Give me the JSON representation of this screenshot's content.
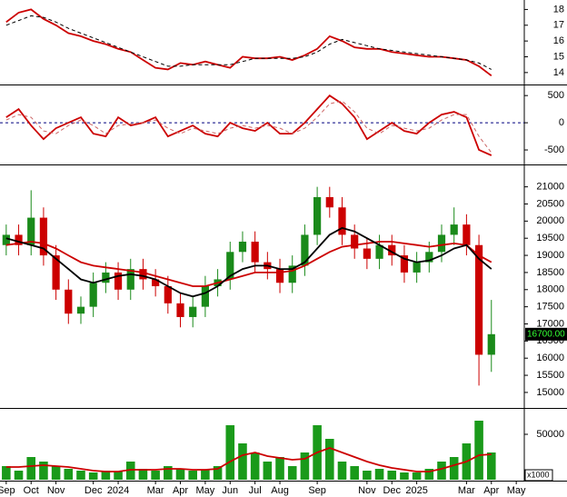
{
  "chart_data": [
    {
      "type": "line",
      "ylim": [
        13.3,
        18.6
      ],
      "yticks": [
        14,
        15,
        16,
        17,
        18
      ],
      "series": [
        {
          "color": "#cc0000",
          "dashed": false,
          "values": [
            17.2,
            17.8,
            18.0,
            17.4,
            17.0,
            16.5,
            16.3,
            16.0,
            15.8,
            15.5,
            15.3,
            14.8,
            14.3,
            14.2,
            14.6,
            14.5,
            14.7,
            14.5,
            14.3,
            15.0,
            14.9,
            14.9,
            15.0,
            14.8,
            15.1,
            15.5,
            16.3,
            16.0,
            15.6,
            15.5,
            15.5,
            15.3,
            15.2,
            15.1,
            15.0,
            15.0,
            14.9,
            14.8,
            14.4,
            13.8,
            null,
            null
          ]
        },
        {
          "color": "#000000",
          "dashed": true,
          "values": [
            17.0,
            17.3,
            17.6,
            17.5,
            17.2,
            16.8,
            16.5,
            16.2,
            15.9,
            15.6,
            15.3,
            15.0,
            14.7,
            14.4,
            14.4,
            14.5,
            14.5,
            14.5,
            14.5,
            14.7,
            14.9,
            14.9,
            14.9,
            14.9,
            15.0,
            15.3,
            15.8,
            16.1,
            15.9,
            15.7,
            15.5,
            15.4,
            15.3,
            15.2,
            15.1,
            15.0,
            14.9,
            14.8,
            14.6,
            14.2,
            null,
            null
          ]
        }
      ]
    },
    {
      "type": "line",
      "ylim": [
        -750,
        670
      ],
      "yticks": [
        -500,
        0,
        500
      ],
      "zero_line": true,
      "series": [
        {
          "color": "#cc0000",
          "dashed": false,
          "values": [
            100,
            250,
            -50,
            -300,
            -100,
            0,
            100,
            -200,
            -250,
            100,
            -50,
            0,
            100,
            -250,
            -150,
            -50,
            -200,
            -250,
            0,
            -100,
            -150,
            0,
            -200,
            -200,
            0,
            250,
            500,
            350,
            100,
            -300,
            -150,
            0,
            -150,
            -200,
            0,
            150,
            200,
            100,
            -500,
            -600,
            null,
            null
          ]
        },
        {
          "color": "#cc6666",
          "dashed": true,
          "values": [
            50,
            150,
            100,
            -150,
            -200,
            -50,
            50,
            -50,
            -200,
            -50,
            -20,
            0,
            50,
            -100,
            -200,
            -100,
            -150,
            -200,
            -100,
            -50,
            -100,
            -50,
            -100,
            -200,
            -100,
            100,
            350,
            400,
            200,
            -100,
            -200,
            -50,
            -100,
            -150,
            -100,
            50,
            150,
            150,
            -250,
            -550,
            null,
            null
          ]
        }
      ]
    },
    {
      "type": "candlestick",
      "ylim": [
        14600,
        21600
      ],
      "yticks": [
        15000,
        15500,
        16000,
        16500,
        17000,
        17500,
        18000,
        18500,
        19000,
        19500,
        20000,
        20500,
        21000
      ],
      "up_color": "#1a8a1a",
      "down_color": "#cc0000",
      "open": [
        19300,
        19600,
        19300,
        20100,
        19000,
        18000,
        17300,
        17500,
        18200,
        18500,
        18000,
        18600,
        18300,
        18100,
        17600,
        17200,
        17500,
        18100,
        18300,
        19100,
        19400,
        18800,
        18600,
        18200,
        18700,
        19600,
        20700,
        20400,
        19600,
        19200,
        18900,
        19300,
        19000,
        18500,
        18800,
        19100,
        19600,
        19900,
        19300,
        16100,
        null,
        null
      ],
      "close": [
        19600,
        19300,
        20100,
        19000,
        18000,
        17300,
        17500,
        18200,
        18500,
        18000,
        18600,
        18300,
        18100,
        17600,
        17200,
        17500,
        18100,
        18300,
        19100,
        19400,
        18800,
        18600,
        18200,
        18700,
        19600,
        20700,
        20400,
        19600,
        19200,
        18900,
        19300,
        19000,
        18500,
        18800,
        19100,
        19600,
        19900,
        19300,
        16100,
        16700,
        null,
        null
      ],
      "high": [
        19900,
        19900,
        20900,
        20400,
        19300,
        18300,
        17800,
        18500,
        18800,
        18800,
        18900,
        18900,
        18600,
        18400,
        17900,
        17800,
        18400,
        18600,
        19400,
        19700,
        19700,
        19100,
        18900,
        19000,
        19900,
        21000,
        21000,
        20700,
        19900,
        19500,
        19600,
        19600,
        19300,
        19100,
        19400,
        19900,
        20400,
        20200,
        19600,
        17700,
        null,
        null
      ],
      "low": [
        19000,
        19000,
        19000,
        18700,
        17700,
        17000,
        17000,
        17200,
        17900,
        17700,
        17700,
        18000,
        17800,
        17300,
        16900,
        16900,
        17200,
        17800,
        18000,
        18800,
        18500,
        18300,
        17900,
        17900,
        18400,
        19300,
        20100,
        19300,
        18900,
        18600,
        18600,
        18700,
        18200,
        18200,
        18500,
        18800,
        19300,
        19000,
        15200,
        15600,
        null,
        null
      ],
      "series": [
        {
          "color": "#cc0000",
          "values": [
            19300,
            19350,
            19400,
            19350,
            19200,
            19000,
            18800,
            18700,
            18650,
            18600,
            18550,
            18500,
            18400,
            18300,
            18200,
            18100,
            18100,
            18200,
            18300,
            18400,
            18500,
            18500,
            18500,
            18550,
            18700,
            18900,
            19100,
            19250,
            19300,
            19350,
            19400,
            19400,
            19350,
            19300,
            19250,
            19300,
            19350,
            19300,
            19000,
            18800,
            null,
            null
          ]
        },
        {
          "color": "#000000",
          "values": [
            19500,
            19400,
            19300,
            19200,
            18900,
            18600,
            18300,
            18200,
            18300,
            18400,
            18450,
            18400,
            18300,
            18100,
            17900,
            17800,
            17900,
            18100,
            18400,
            18600,
            18700,
            18700,
            18600,
            18600,
            18800,
            19200,
            19600,
            19800,
            19700,
            19500,
            19300,
            19100,
            18900,
            18800,
            18850,
            19000,
            19200,
            19300,
            18900,
            18600,
            null,
            null
          ]
        }
      ],
      "last_price_label": "16700.00"
    },
    {
      "type": "volume",
      "ylim": [
        0,
        76000
      ],
      "yticks": [
        50000
      ],
      "color": "#1a9a1a",
      "unit_label": "x1000",
      "categories": [
        "Sep",
        null,
        "Oct",
        null,
        "Nov",
        null,
        null,
        "Dec",
        null,
        "2024",
        null,
        null,
        "Mar",
        null,
        "Apr",
        null,
        "May",
        null,
        "Jun",
        null,
        "Jul",
        null,
        "Aug",
        null,
        null,
        "Sep",
        null,
        null,
        null,
        "Nov",
        null,
        "Dec",
        null,
        "2025",
        null,
        null,
        null,
        "Mar",
        null,
        "Apr",
        null,
        "May"
      ],
      "values": [
        15000,
        10000,
        25000,
        20000,
        15000,
        12000,
        10000,
        8000,
        10000,
        9000,
        20000,
        12000,
        10000,
        15000,
        12000,
        10000,
        11000,
        15000,
        60000,
        40000,
        30000,
        20000,
        25000,
        15000,
        30000,
        60000,
        45000,
        20000,
        15000,
        10000,
        12000,
        10000,
        8000,
        8000,
        12000,
        20000,
        25000,
        40000,
        65000,
        30000,
        null,
        null
      ],
      "series": [
        {
          "color": "#cc0000",
          "values": [
            14000,
            14000,
            15000,
            16000,
            15000,
            14000,
            12000,
            10000,
            9000,
            9000,
            11000,
            11000,
            11000,
            12000,
            12000,
            11000,
            11000,
            12000,
            20000,
            27000,
            30000,
            26000,
            24000,
            22000,
            23000,
            30000,
            35000,
            30000,
            25000,
            20000,
            16000,
            13000,
            11000,
            9000,
            9000,
            12000,
            16000,
            20000,
            27000,
            28000,
            null,
            null
          ]
        }
      ]
    }
  ]
}
